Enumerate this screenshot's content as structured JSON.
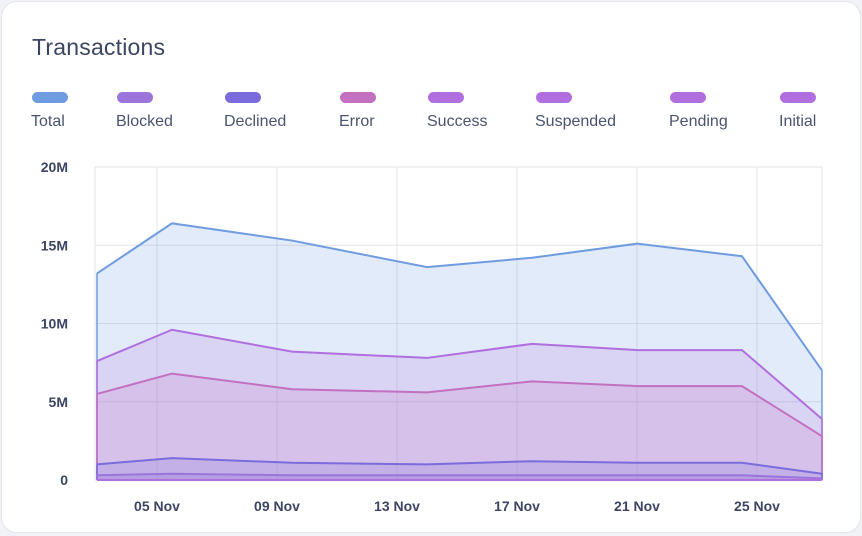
{
  "card": {
    "title": "Transactions"
  },
  "chart_data": {
    "type": "area",
    "title": "Transactions",
    "xlabel": "",
    "ylabel": "",
    "x": [
      3,
      5.5,
      9.5,
      14,
      17.5,
      21,
      24.5,
      27.2
    ],
    "xlim": [
      3,
      27.2
    ],
    "ylim": [
      0,
      20000000
    ],
    "x_ticks": [
      {
        "value": 5,
        "label": "05 Nov"
      },
      {
        "value": 9,
        "label": "09 Nov"
      },
      {
        "value": 13,
        "label": "13 Nov"
      },
      {
        "value": 17,
        "label": "17 Nov"
      },
      {
        "value": 21,
        "label": "21 Nov"
      },
      {
        "value": 25,
        "label": "25 Nov"
      }
    ],
    "y_ticks": [
      {
        "value": 0,
        "label": "0"
      },
      {
        "value": 5000000,
        "label": "5M"
      },
      {
        "value": 10000000,
        "label": "10M"
      },
      {
        "value": 15000000,
        "label": "15M"
      },
      {
        "value": 20000000,
        "label": "20M"
      }
    ],
    "grid": true,
    "legend_position": "top",
    "series": [
      {
        "name": "Total",
        "color": "#6f9be0",
        "values": [
          13.2,
          16.4,
          15.3,
          13.6,
          14.2,
          15.1,
          14.3,
          7.0
        ]
      },
      {
        "name": "Blocked",
        "color": "#9b74dc",
        "values": [
          0.3,
          0.4,
          0.3,
          0.3,
          0.3,
          0.3,
          0.3,
          0.1
        ]
      },
      {
        "name": "Declined",
        "color": "#7a6cdc",
        "values": [
          1.0,
          1.4,
          1.1,
          1.0,
          1.2,
          1.1,
          1.1,
          0.4
        ]
      },
      {
        "name": "Error",
        "color": "#c270bf",
        "values": [
          5.5,
          6.8,
          5.8,
          5.6,
          6.3,
          6.0,
          6.0,
          2.8
        ]
      },
      {
        "name": "Success",
        "color": "#b06ede",
        "values": [
          7.6,
          9.6,
          8.2,
          7.8,
          8.7,
          8.3,
          8.3,
          3.9
        ]
      },
      {
        "name": "Suspended",
        "color": "#b06ede",
        "values": [
          0,
          0,
          0,
          0,
          0,
          0,
          0,
          0
        ]
      },
      {
        "name": "Pending",
        "color": "#b06ede",
        "values": [
          0,
          0,
          0,
          0,
          0,
          0,
          0,
          0
        ]
      },
      {
        "name": "Initial",
        "color": "#b06ede",
        "values": [
          0,
          0,
          0,
          0,
          0,
          0,
          0,
          0
        ]
      }
    ],
    "value_unit": "M"
  }
}
